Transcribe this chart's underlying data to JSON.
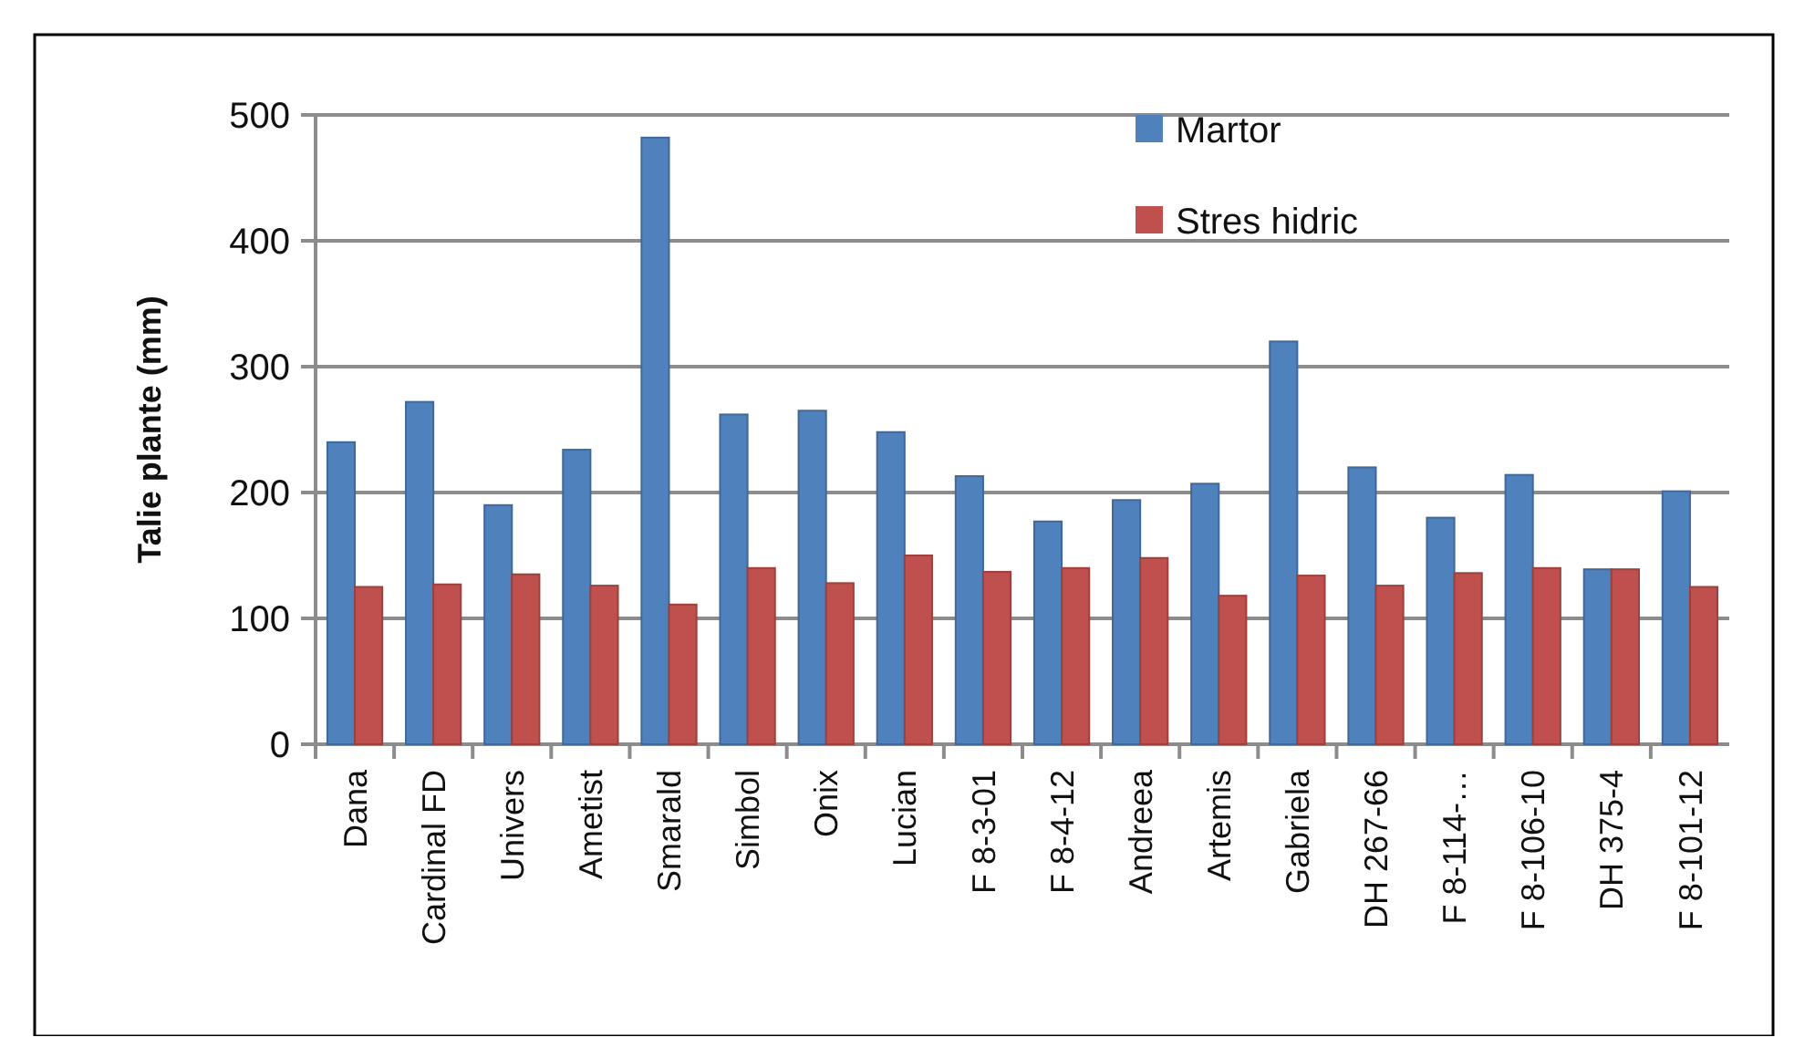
{
  "chart_data": {
    "type": "bar",
    "ylabel": "Talie plante (mm)",
    "categories": [
      "Dana",
      "Cardinal FD",
      "Univers",
      "Ametist",
      "Smarald",
      "Simbol",
      "Onix",
      "Lucian",
      "F 8-3-01",
      "F 8-4-12",
      "Andreea",
      "Artemis",
      "Gabriela",
      "DH 267-66",
      "F 8-114-…",
      "F 8-106-10",
      "DH 375-4",
      "F 8-101-12"
    ],
    "series": [
      {
        "name": "Martor",
        "color": "#4f81bd",
        "values": [
          240,
          272,
          190,
          234,
          482,
          262,
          265,
          248,
          213,
          177,
          194,
          207,
          320,
          220,
          180,
          214,
          139,
          201
        ]
      },
      {
        "name": "Stres hidric",
        "color": "#c0504d",
        "values": [
          125,
          127,
          135,
          126,
          111,
          140,
          128,
          150,
          137,
          140,
          148,
          118,
          134,
          126,
          136,
          140,
          139,
          125
        ]
      }
    ],
    "ylim": [
      0,
      500
    ],
    "yticks": [
      0,
      100,
      200,
      300,
      400,
      500
    ],
    "grid": "y",
    "legend": "top"
  }
}
